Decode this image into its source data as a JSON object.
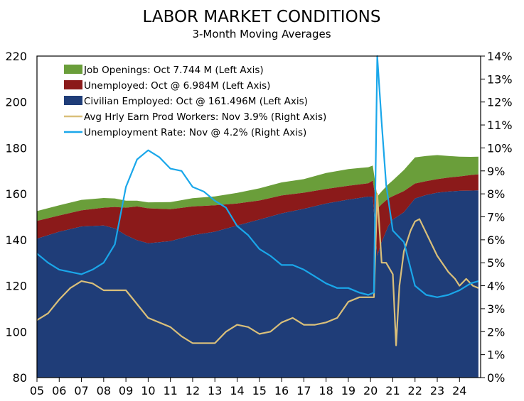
{
  "chart_data": {
    "type": "area",
    "title": "LABOR MARKET CONDITIONS",
    "subtitle": "3-Month Moving Averages",
    "xlabel": "",
    "ylabel_left": "",
    "ylabel_right": "",
    "x_ticks": [
      "05",
      "06",
      "07",
      "08",
      "09",
      "10",
      "11",
      "12",
      "13",
      "14",
      "15",
      "16",
      "17",
      "18",
      "19",
      "20",
      "21",
      "22",
      "23",
      "24"
    ],
    "x_range": [
      2005.0,
      2024.95
    ],
    "ylim_left": [
      80,
      220
    ],
    "ylim_right": [
      0,
      14
    ],
    "yticks_left": [
      80,
      100,
      120,
      140,
      160,
      180,
      200,
      220
    ],
    "yticks_right": [
      "0%",
      "1%",
      "2%",
      "3%",
      "4%",
      "5%",
      "6%",
      "7%",
      "8%",
      "9%",
      "10%",
      "11%",
      "12%",
      "13%",
      "14%"
    ],
    "legend_position": "top-left",
    "colors": {
      "job_openings": "#6a9e3a",
      "unemployed": "#8b1a1a",
      "employed": "#1f3d78",
      "earnings": "#d9bf7a",
      "unemployment_rate": "#1aa7ea"
    },
    "series": [
      {
        "name": "Job Openings: Oct 7.744 M (Left Axis)",
        "kind": "stacked-area",
        "axis": "left",
        "x": [
          2005.0,
          2006.0,
          2007.0,
          2008.0,
          2008.5,
          2009.0,
          2009.5,
          2010.0,
          2011.0,
          2012.0,
          2013.0,
          2014.0,
          2015.0,
          2016.0,
          2017.0,
          2018.0,
          2019.0,
          2019.9,
          2020.1,
          2020.3,
          2020.5,
          2020.8,
          2021.0,
          2021.5,
          2022.0,
          2022.5,
          2023.0,
          2023.5,
          2024.0,
          2024.5,
          2024.85
        ],
        "values": [
          4.3,
          4.4,
          4.6,
          4.2,
          3.7,
          3.0,
          2.5,
          2.6,
          3.1,
          3.6,
          3.9,
          4.6,
          5.3,
          5.7,
          5.9,
          7.0,
          7.3,
          7.0,
          6.5,
          5.3,
          5.6,
          6.2,
          6.9,
          9.2,
          11.4,
          11.0,
          10.5,
          9.4,
          8.6,
          7.9,
          7.7
        ]
      },
      {
        "name": "Unemployed: Oct @ 6.984M (Left Axis)",
        "kind": "stacked-area",
        "axis": "left",
        "x": [
          2005.0,
          2006.0,
          2007.0,
          2008.0,
          2008.5,
          2009.0,
          2009.5,
          2010.0,
          2011.0,
          2012.0,
          2013.0,
          2014.0,
          2015.0,
          2016.0,
          2017.0,
          2018.0,
          2019.0,
          2019.9,
          2020.1,
          2020.3,
          2020.5,
          2020.8,
          2021.0,
          2021.5,
          2022.0,
          2022.5,
          2023.0,
          2023.5,
          2024.0,
          2024.5,
          2024.85
        ],
        "values": [
          7.7,
          7.1,
          7.0,
          7.8,
          9.3,
          12.0,
          14.7,
          15.2,
          13.9,
          12.5,
          11.5,
          9.6,
          8.3,
          7.8,
          7.0,
          6.3,
          6.0,
          5.8,
          7.1,
          20.5,
          16.5,
          12.0,
          10.2,
          9.2,
          6.5,
          6.0,
          5.9,
          6.1,
          6.3,
          6.8,
          7.0
        ]
      },
      {
        "name": "Civilian Employed: Oct @ 161.496M (Left Axis)",
        "kind": "stacked-area",
        "axis": "left",
        "x": [
          2005.0,
          2006.0,
          2007.0,
          2008.0,
          2008.5,
          2009.0,
          2009.5,
          2010.0,
          2011.0,
          2012.0,
          2013.0,
          2014.0,
          2015.0,
          2016.0,
          2017.0,
          2018.0,
          2019.0,
          2019.9,
          2020.1,
          2020.3,
          2020.5,
          2020.8,
          2021.0,
          2021.5,
          2022.0,
          2022.5,
          2023.0,
          2023.5,
          2024.0,
          2024.5,
          2024.85
        ],
        "values": [
          140.5,
          143.5,
          145.8,
          146.2,
          145.0,
          142.0,
          139.8,
          138.5,
          139.4,
          142.0,
          143.5,
          146.2,
          148.8,
          151.5,
          153.5,
          155.8,
          157.5,
          158.8,
          158.7,
          133.0,
          139.0,
          146.0,
          148.8,
          152.0,
          158.0,
          159.5,
          160.5,
          161.0,
          161.3,
          161.4,
          161.5
        ]
      },
      {
        "name": "Avg Hrly Earn Prod Workers: Nov 3.9% (Right Axis)",
        "kind": "line",
        "axis": "right",
        "x": [
          2005.0,
          2005.5,
          2006.0,
          2006.5,
          2007.0,
          2007.5,
          2008.0,
          2008.5,
          2009.0,
          2009.5,
          2010.0,
          2010.5,
          2011.0,
          2011.5,
          2012.0,
          2012.5,
          2013.0,
          2013.5,
          2014.0,
          2014.5,
          2015.0,
          2015.5,
          2016.0,
          2016.5,
          2017.0,
          2017.5,
          2018.0,
          2018.5,
          2019.0,
          2019.5,
          2019.9,
          2020.15,
          2020.3,
          2020.5,
          2020.7,
          2021.0,
          2021.15,
          2021.3,
          2021.5,
          2021.8,
          2022.0,
          2022.2,
          2022.5,
          2023.0,
          2023.5,
          2023.8,
          2024.0,
          2024.3,
          2024.6,
          2024.85
        ],
        "values": [
          2.5,
          2.8,
          3.4,
          3.9,
          4.2,
          4.1,
          3.8,
          3.8,
          3.8,
          3.2,
          2.6,
          2.4,
          2.2,
          1.8,
          1.5,
          1.5,
          1.5,
          2.0,
          2.3,
          2.2,
          1.9,
          2.0,
          2.4,
          2.6,
          2.3,
          2.3,
          2.4,
          2.6,
          3.3,
          3.5,
          3.5,
          3.5,
          8.0,
          5.0,
          5.0,
          4.5,
          1.4,
          4.0,
          5.5,
          6.4,
          6.8,
          6.9,
          6.3,
          5.3,
          4.6,
          4.3,
          4.0,
          4.3,
          4.0,
          3.9
        ]
      },
      {
        "name": "Unemployment Rate: Nov @ 4.2% (Right Axis)",
        "kind": "line",
        "axis": "right",
        "x": [
          2005.0,
          2005.5,
          2006.0,
          2006.5,
          2007.0,
          2007.5,
          2008.0,
          2008.5,
          2009.0,
          2009.5,
          2010.0,
          2010.5,
          2011.0,
          2011.5,
          2012.0,
          2012.5,
          2013.0,
          2013.5,
          2014.0,
          2014.5,
          2015.0,
          2015.5,
          2016.0,
          2016.5,
          2017.0,
          2017.5,
          2018.0,
          2018.5,
          2019.0,
          2019.5,
          2019.9,
          2020.15,
          2020.3,
          2020.5,
          2020.7,
          2021.0,
          2021.5,
          2022.0,
          2022.5,
          2023.0,
          2023.5,
          2024.0,
          2024.5,
          2024.85
        ],
        "values": [
          5.4,
          5.0,
          4.7,
          4.6,
          4.5,
          4.7,
          5.0,
          5.8,
          8.3,
          9.5,
          9.9,
          9.6,
          9.1,
          9.0,
          8.3,
          8.1,
          7.7,
          7.4,
          6.6,
          6.2,
          5.6,
          5.3,
          4.9,
          4.9,
          4.7,
          4.4,
          4.1,
          3.9,
          3.9,
          3.7,
          3.6,
          3.7,
          14.3,
          11.1,
          8.4,
          6.4,
          5.9,
          4.0,
          3.6,
          3.5,
          3.6,
          3.8,
          4.1,
          4.2
        ]
      }
    ]
  }
}
